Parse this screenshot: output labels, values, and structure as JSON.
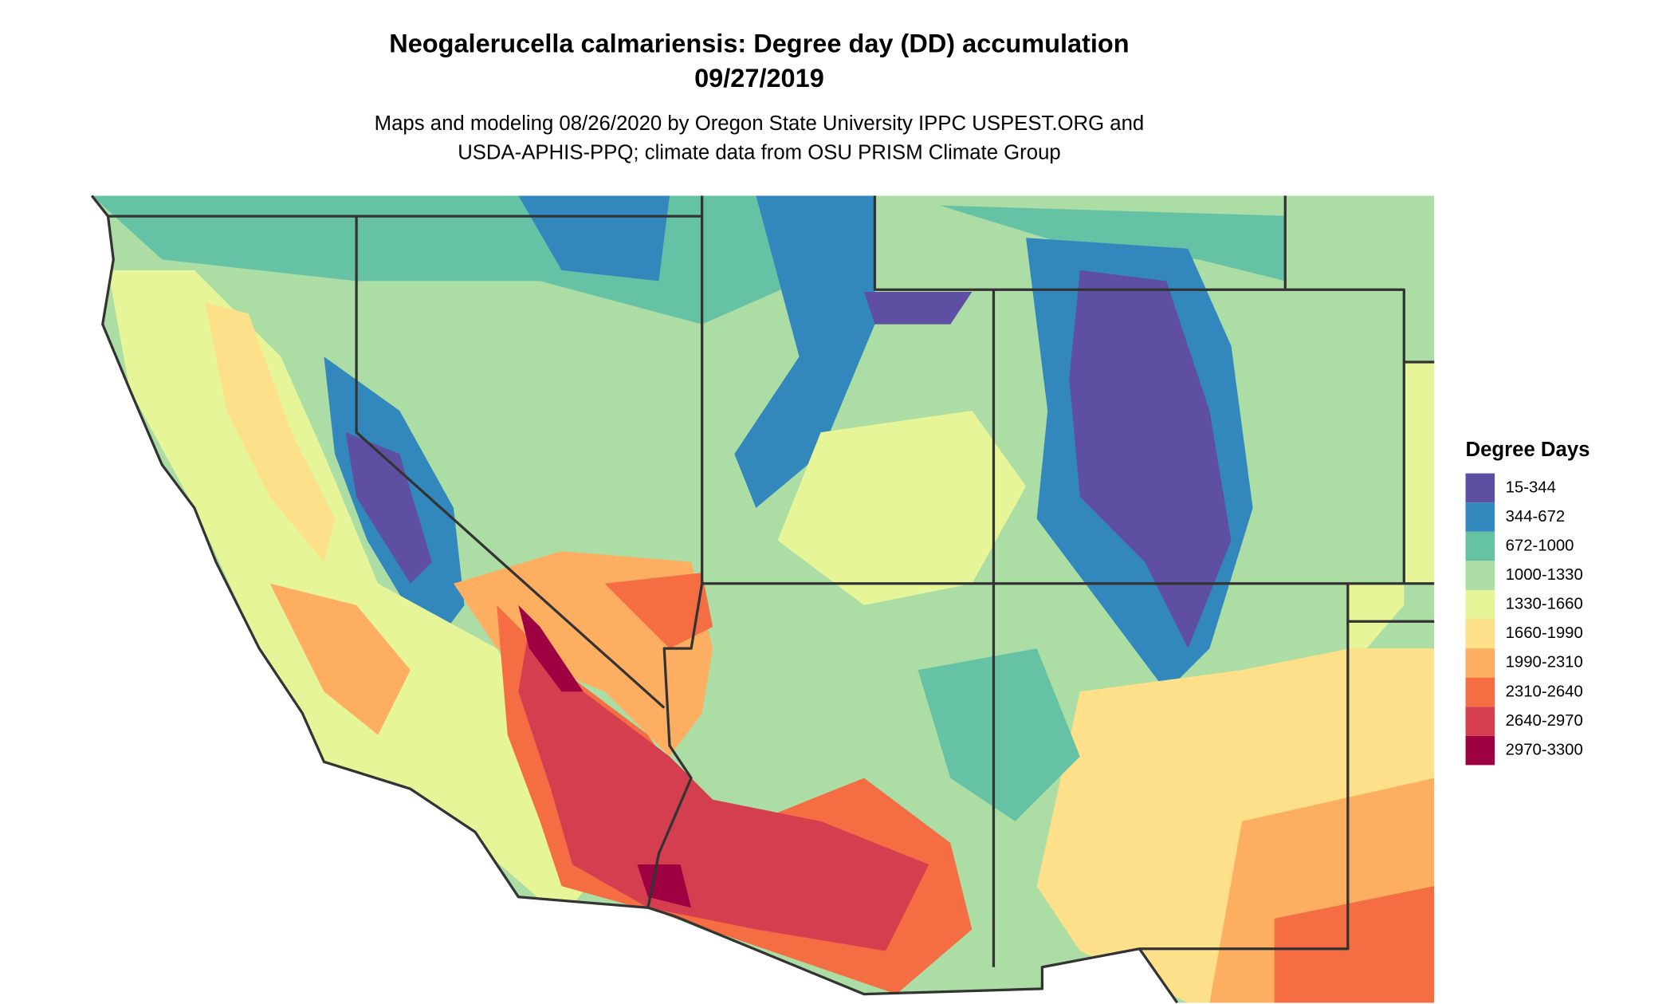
{
  "title": "Neogalerucella calmariensis: Degree day (DD) accumulation",
  "date": "09/27/2019",
  "subtitle_lines": [
    "Maps and modeling 08/26/2020 by Oregon State University IPPC USPEST.ORG and",
    "USDA-APHIS-PPQ; climate data from OSU PRISM Climate Group"
  ],
  "legend": {
    "title": "Degree Days",
    "items": [
      {
        "label": "15-344",
        "color": "#5e4fa2"
      },
      {
        "label": "344-672",
        "color": "#3288bd"
      },
      {
        "label": "672-1000",
        "color": "#66c2a5"
      },
      {
        "label": "1000-1330",
        "color": "#abdda4"
      },
      {
        "label": "1330-1660",
        "color": "#e6f598"
      },
      {
        "label": "1660-1990",
        "color": "#fee08b"
      },
      {
        "label": "1990-2310",
        "color": "#fdae61"
      },
      {
        "label": "2310-2640",
        "color": "#f46d43"
      },
      {
        "label": "2640-2970",
        "color": "#d53e4f"
      },
      {
        "label": "2970-3300",
        "color": "#9e0142"
      }
    ]
  }
}
